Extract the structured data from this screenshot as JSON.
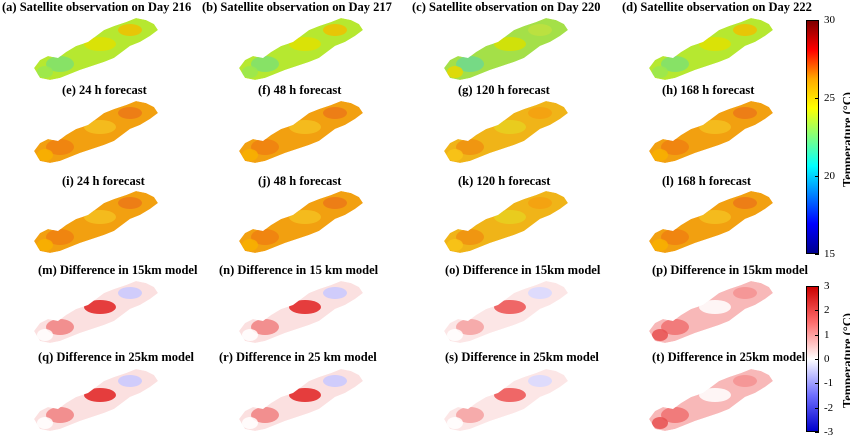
{
  "panels": [
    {
      "title": "(a) Satellite observation on Day 216",
      "kind": "temp",
      "tint": "obs"
    },
    {
      "title": "(b) Satellite observation on Day 217",
      "kind": "temp",
      "tint": "obs"
    },
    {
      "title": "(c) Satellite observation on Day 220",
      "kind": "temp",
      "tint": "obs2"
    },
    {
      "title": "(d) Satellite observation on Day 222",
      "kind": "temp",
      "tint": "obs"
    },
    {
      "title": "(e) 24 h forecast",
      "kind": "temp",
      "tint": "fc"
    },
    {
      "title": "(f) 48 h forecast",
      "kind": "temp",
      "tint": "fc"
    },
    {
      "title": "(g) 120 h forecast",
      "kind": "temp",
      "tint": "fc2"
    },
    {
      "title": "(h) 168 h forecast",
      "kind": "temp",
      "tint": "fc"
    },
    {
      "title": "(i) 24 h forecast",
      "kind": "temp",
      "tint": "fc"
    },
    {
      "title": "(j) 48 h forecast",
      "kind": "temp",
      "tint": "fc"
    },
    {
      "title": "(k) 120 h forecast",
      "kind": "temp",
      "tint": "fc2"
    },
    {
      "title": "(l) 168 h forecast",
      "kind": "temp",
      "tint": "fc"
    },
    {
      "title": "(m) Difference in 15km model",
      "kind": "diff",
      "tint": "d1"
    },
    {
      "title": "(n) Difference in 15 km model",
      "kind": "diff",
      "tint": "d1"
    },
    {
      "title": "(o) Difference in 15km model",
      "kind": "diff",
      "tint": "d2"
    },
    {
      "title": "(p) Difference in 15km model",
      "kind": "diff",
      "tint": "d3"
    },
    {
      "title": "(q) Difference in 25km model",
      "kind": "diff",
      "tint": "d1"
    },
    {
      "title": "(r) Difference in 25 km model",
      "kind": "diff",
      "tint": "d1"
    },
    {
      "title": "(s) Difference in 25km model",
      "kind": "diff",
      "tint": "d2"
    },
    {
      "title": "(t) Difference in 25km model",
      "kind": "diff",
      "tint": "d3"
    }
  ],
  "colorbar_temp": {
    "label": "Temperature (°C)",
    "ticks": [
      "30",
      "25",
      "20",
      "15"
    ],
    "range": [
      15,
      30
    ],
    "colors": [
      "#7f0000",
      "#ff0000",
      "#ffaa00",
      "#ffff00",
      "#80ff80",
      "#00ffff",
      "#0080ff",
      "#0000ff",
      "#00008f"
    ]
  },
  "colorbar_diff": {
    "label": "Temperature (°C)",
    "ticks": [
      "3",
      "2",
      "1",
      "0",
      "-1",
      "-2",
      "-3"
    ],
    "range": [
      -3,
      3
    ],
    "colors": [
      "#cc0000",
      "#ff7070",
      "#ffffff",
      "#7070ff",
      "#0000cc"
    ]
  }
}
